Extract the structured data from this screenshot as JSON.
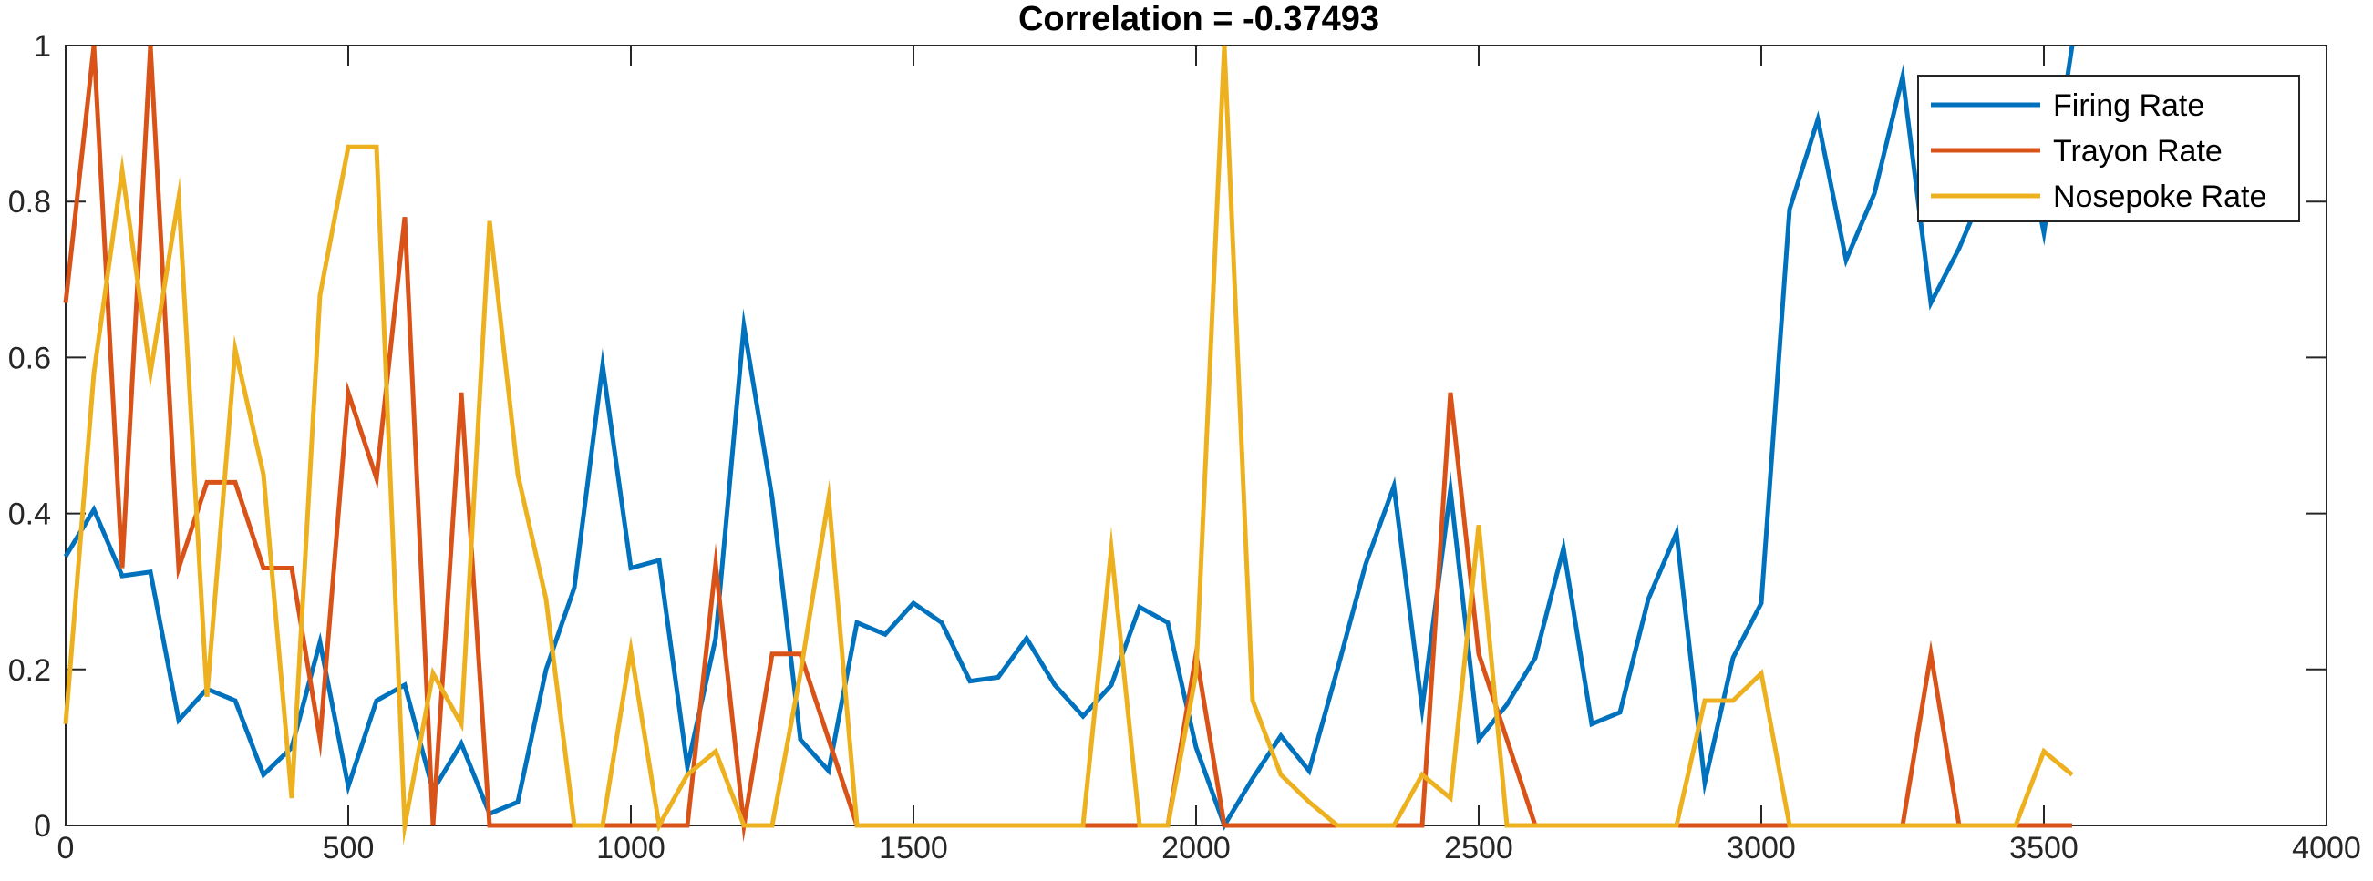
{
  "chart_data": {
    "type": "line",
    "title": "Correlation = -0.37493",
    "xlabel": "",
    "ylabel": "",
    "xlim": [
      0,
      4000
    ],
    "ylim": [
      0,
      1
    ],
    "xticks": [
      0,
      500,
      1000,
      1500,
      2000,
      2500,
      3000,
      3500,
      4000
    ],
    "yticks": [
      0,
      0.2,
      0.4,
      0.6,
      0.8,
      1
    ],
    "xtick_labels": [
      "0",
      "500",
      "1000",
      "1500",
      "2000",
      "2500",
      "3000",
      "3500",
      "4000"
    ],
    "ytick_labels": [
      "0",
      "0.2",
      "0.4",
      "0.6",
      "0.8",
      "1"
    ],
    "grid": false,
    "legend_position": "top-right",
    "x": [
      0,
      50,
      100,
      150,
      200,
      250,
      300,
      350,
      400,
      450,
      500,
      550,
      600,
      650,
      700,
      750,
      800,
      850,
      900,
      950,
      1000,
      1050,
      1100,
      1150,
      1200,
      1250,
      1300,
      1350,
      1400,
      1450,
      1500,
      1550,
      1600,
      1650,
      1700,
      1750,
      1800,
      1850,
      1900,
      1950,
      2000,
      2050,
      2100,
      2150,
      2200,
      2250,
      2300,
      2350,
      2400,
      2450,
      2500,
      2550,
      2600,
      2650,
      2700,
      2750,
      2800,
      2850,
      2900,
      2950,
      3000,
      3050,
      3100,
      3150,
      3200,
      3250,
      3300,
      3350,
      3400,
      3450,
      3500,
      3550
    ],
    "series": [
      {
        "name": "Firing Rate",
        "color": "#0072BD",
        "values": [
          0.345,
          0.405,
          0.32,
          0.325,
          0.135,
          0.175,
          0.16,
          0.065,
          0.1,
          0.235,
          0.05,
          0.16,
          0.18,
          0.045,
          0.105,
          0.015,
          0.03,
          0.2,
          0.305,
          0.59,
          0.33,
          0.34,
          0.075,
          0.24,
          0.64,
          0.42,
          0.11,
          0.07,
          0.26,
          0.245,
          0.285,
          0.26,
          0.185,
          0.19,
          0.24,
          0.18,
          0.14,
          0.18,
          0.28,
          0.26,
          0.1,
          0.0,
          0.06,
          0.115,
          0.07,
          0.2,
          0.335,
          0.435,
          0.15,
          0.43,
          0.11,
          0.155,
          0.215,
          0.355,
          0.13,
          0.145,
          0.29,
          0.375,
          0.055,
          0.215,
          0.285,
          0.79,
          0.905,
          0.725,
          0.81,
          0.96,
          0.67,
          0.74,
          0.825,
          0.94,
          0.76,
          1.0
        ]
      },
      {
        "name": "Trayon Rate",
        "color": "#D95319",
        "values": [
          0.67,
          1.0,
          0.33,
          1.0,
          0.33,
          0.44,
          0.44,
          0.33,
          0.33,
          0.11,
          0.555,
          0.445,
          0.78,
          0.0,
          0.555,
          0.0,
          0.0,
          0.0,
          0.0,
          0.0,
          0.0,
          0.0,
          0.0,
          0.335,
          0.0,
          0.22,
          0.22,
          0.11,
          0.0,
          0.0,
          0.0,
          0.0,
          0.0,
          0.0,
          0.0,
          0.0,
          0.0,
          0.0,
          0.0,
          0.0,
          0.22,
          0.0,
          0.0,
          0.0,
          0.0,
          0.0,
          0.0,
          0.0,
          0.0,
          0.555,
          0.22,
          0.11,
          0.0,
          0.0,
          0.0,
          0.0,
          0.0,
          0.0,
          0.0,
          0.0,
          0.0,
          0.0,
          0.0,
          0.0,
          0.0,
          0.0,
          0.22,
          0.0,
          0.0,
          0.0,
          0.0,
          0.0
        ]
      },
      {
        "name": "Nosepoke Rate",
        "color": "#EDB120",
        "values": [
          0.13,
          0.58,
          0.84,
          0.58,
          0.805,
          0.165,
          0.61,
          0.45,
          0.035,
          0.68,
          0.87,
          0.87,
          0.0,
          0.195,
          0.13,
          0.775,
          0.45,
          0.29,
          0.0,
          0.0,
          0.225,
          0.0,
          0.065,
          0.095,
          0.0,
          0.0,
          0.195,
          0.42,
          0.0,
          0.0,
          0.0,
          0.0,
          0.0,
          0.0,
          0.0,
          0.0,
          0.0,
          0.355,
          0.0,
          0.0,
          0.195,
          1.0,
          0.16,
          0.065,
          0.03,
          0.0,
          0.0,
          0.0,
          0.065,
          0.035,
          0.385,
          0.0,
          0.0,
          0.0,
          0.0,
          0.0,
          0.0,
          0.0,
          0.16,
          0.16,
          0.195,
          0.0,
          0.0,
          0.0,
          0.0,
          0.0,
          0.0,
          0.0,
          0.0,
          0.0,
          0.095,
          0.065
        ]
      }
    ]
  }
}
